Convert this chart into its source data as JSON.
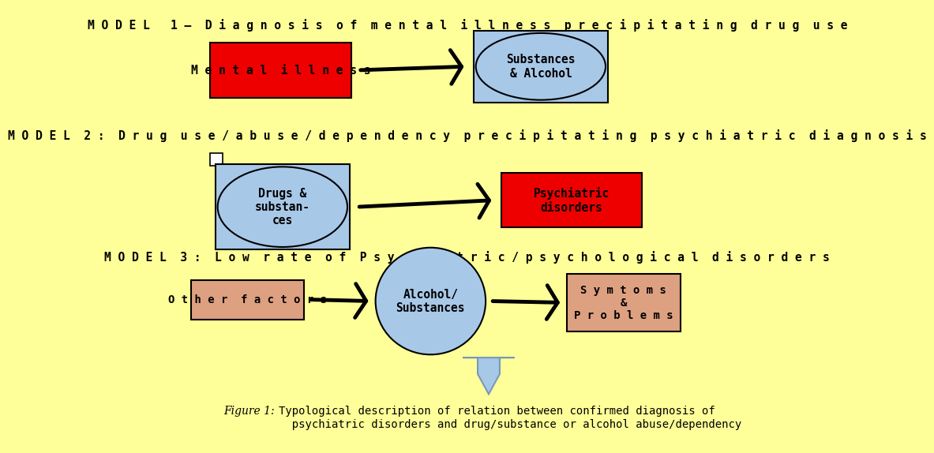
{
  "bg_color": "#FFFF99",
  "title1": "M O D E L   1 –  D i a g n o s i s  o f  m e n t a l  i l l n e s s  p r e c i p i t a t i n g  d r u g  u s e",
  "title2": "M O D E L  2 :  D r u g  u s e / a b u s e / d e p e n d e n c y  p r e c i p i t a t i n g  p s y c h i a t r i c  d i a g n o s i s",
  "title3": "M O D E L  3 :  L o w  r a t e  o f  P s y c h i a t r i c / p s y c h o l o g i c a l  d i s o r d e r s",
  "box1_label": "M e n t a l  i l l n e s s",
  "box1_color": "#EE0000",
  "oval1_label": "Substances\n& Alcohol",
  "oval1_bg_color": "#A8C8E8",
  "oval2_label": "Drugs &\nsubstan-\nces",
  "oval2_bg_color": "#A8C8E8",
  "box2_label": "Psychiatric\ndisorders",
  "box2_color": "#EE0000",
  "oval3_label": "Alcohol/\nSubstances",
  "oval3_bg_color": "#A8C8E8",
  "box3_label": "O t h e r  f a c t o r s",
  "box3_color": "#DDA080",
  "box4_label": "S y m t o m s\n&\nP r o b l e m s",
  "box4_color": "#DDA080",
  "chevron_color": "#A8C8E8",
  "chevron_edge": "#7799BB",
  "figure_italic": "Figure 1:",
  "figure_text": "  Typological description of relation between confirmed diagnosis of\n  psychiatric disorders and drug/substance or alcohol abuse/dependency"
}
